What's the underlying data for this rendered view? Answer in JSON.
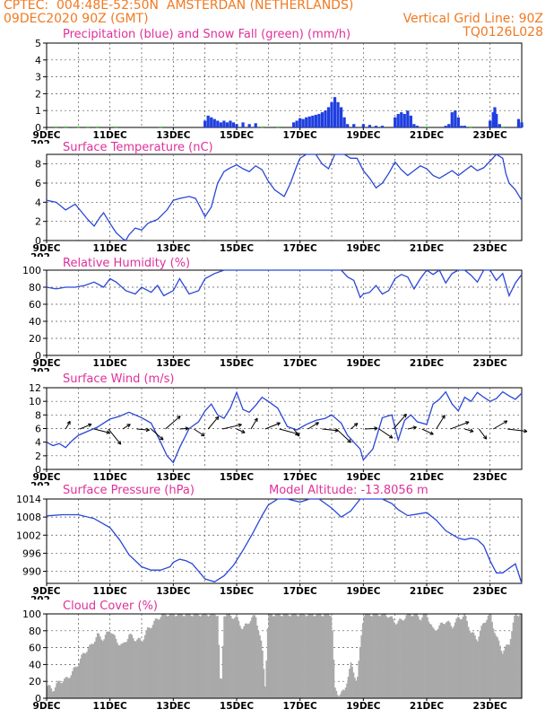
{
  "header": {
    "line1_left": "CPTEC:  004:48E-52:50N  AMSTERDAN (NETHERLANDS)",
    "line2_left": "09DEC2020 90Z (GMT)",
    "line2_right": "Vertical Grid Line: 90Z",
    "line3_right": "TQ0126L028"
  },
  "colors": {
    "header": "#f07a22",
    "title": "#e0309a",
    "line": "#2a47d6",
    "precip": "#1f3fe0",
    "snow": "#2bb52b",
    "cloud": "#a9a9a9",
    "wind_vector": "#000000"
  },
  "x_axis": {
    "tick_labels": [
      "9DEC",
      "11DEC",
      "13DEC",
      "15DEC",
      "17DEC",
      "19DEC",
      "21DEC",
      "23DEC"
    ],
    "tick_days": [
      9,
      11,
      13,
      15,
      17,
      19,
      21,
      23
    ],
    "range_days": [
      9,
      24
    ],
    "clipped_label_left": "202"
  },
  "chart_data": [
    {
      "type": "bar",
      "title": "Precipitation (blue) and Snow Fall (green) (mm/h)",
      "ylim": [
        0,
        5
      ],
      "yticks": [
        "0",
        "1",
        "2",
        "3",
        "4",
        "5"
      ],
      "grid": true,
      "series": [
        {
          "name": "Precipitation (blue)",
          "points": [
            [
              14.0,
              0.4
            ],
            [
              14.1,
              0.7
            ],
            [
              14.2,
              0.6
            ],
            [
              14.3,
              0.5
            ],
            [
              14.4,
              0.4
            ],
            [
              14.5,
              0.3
            ],
            [
              14.6,
              0.4
            ],
            [
              14.7,
              0.3
            ],
            [
              14.8,
              0.4
            ],
            [
              14.9,
              0.3
            ],
            [
              15.0,
              0.2
            ],
            [
              15.2,
              0.3
            ],
            [
              15.4,
              0.2
            ],
            [
              15.6,
              0.25
            ],
            [
              16.8,
              0.3
            ],
            [
              16.9,
              0.4
            ],
            [
              17.0,
              0.55
            ],
            [
              17.1,
              0.5
            ],
            [
              17.2,
              0.6
            ],
            [
              17.3,
              0.65
            ],
            [
              17.4,
              0.7
            ],
            [
              17.5,
              0.75
            ],
            [
              17.6,
              0.8
            ],
            [
              17.7,
              0.9
            ],
            [
              17.8,
              1.0
            ],
            [
              17.9,
              1.2
            ],
            [
              18.0,
              1.5
            ],
            [
              18.1,
              1.8
            ],
            [
              18.2,
              1.5
            ],
            [
              18.3,
              1.2
            ],
            [
              18.4,
              0.6
            ],
            [
              18.5,
              0.2
            ],
            [
              18.7,
              0.2
            ],
            [
              19.0,
              0.2
            ],
            [
              19.2,
              0.15
            ],
            [
              19.4,
              0.1
            ],
            [
              19.6,
              0.1
            ],
            [
              20.0,
              0.6
            ],
            [
              20.1,
              0.8
            ],
            [
              20.2,
              0.9
            ],
            [
              20.3,
              0.8
            ],
            [
              20.4,
              1.0
            ],
            [
              20.5,
              0.7
            ],
            [
              20.6,
              0.2
            ],
            [
              20.7,
              0.1
            ],
            [
              21.6,
              0.1
            ],
            [
              21.7,
              0.2
            ],
            [
              21.8,
              0.9
            ],
            [
              21.9,
              1.0
            ],
            [
              22.0,
              0.6
            ],
            [
              22.1,
              0.1
            ],
            [
              22.2,
              0.1
            ],
            [
              23.0,
              0.4
            ],
            [
              23.1,
              0.9
            ],
            [
              23.15,
              1.2
            ],
            [
              23.2,
              0.8
            ],
            [
              23.3,
              0.2
            ],
            [
              23.9,
              0.5
            ],
            [
              24.0,
              0.3
            ]
          ]
        },
        {
          "name": "Snow Fall (green)",
          "points": [
            [
              9.3,
              0.05
            ],
            [
              9.6,
              0.05
            ],
            [
              10.0,
              0.05
            ],
            [
              10.3,
              0.05
            ],
            [
              10.6,
              0.05
            ],
            [
              11.2,
              0.05
            ],
            [
              12.6,
              0.05
            ],
            [
              15.8,
              0.05
            ],
            [
              16.3,
              0.05
            ],
            [
              21.0,
              0.05
            ],
            [
              22.4,
              0.05
            ],
            [
              23.4,
              0.05
            ]
          ]
        }
      ]
    },
    {
      "type": "line",
      "title": "Surface Temperature (nC)",
      "ylim": [
        0,
        9
      ],
      "yticks": [
        "0",
        "2",
        "4",
        "6",
        "8"
      ],
      "grid": true,
      "x": [
        9.0,
        9.3,
        9.6,
        9.9,
        10.1,
        10.3,
        10.5,
        10.7,
        10.8,
        11.0,
        11.2,
        11.4,
        11.5,
        11.6,
        11.8,
        12.0,
        12.2,
        12.5,
        12.8,
        13.0,
        13.2,
        13.5,
        13.7,
        13.8,
        14.0,
        14.2,
        14.4,
        14.6,
        14.8,
        15.0,
        15.2,
        15.4,
        15.6,
        15.8,
        16.0,
        16.2,
        16.5,
        16.7,
        16.9,
        17.0,
        17.2,
        17.5,
        17.7,
        17.9,
        18.1,
        18.4,
        18.6,
        18.8,
        19.0,
        19.2,
        19.4,
        19.6,
        19.8,
        20.0,
        20.2,
        20.4,
        20.6,
        20.8,
        21.0,
        21.2,
        21.4,
        21.6,
        21.8,
        22.0,
        22.2,
        22.4,
        22.6,
        22.8,
        23.0,
        23.2,
        23.4,
        23.5,
        23.6,
        23.8,
        24.0
      ],
      "y": [
        4.2,
        4.0,
        3.2,
        3.8,
        3.0,
        2.2,
        1.5,
        2.5,
        2.9,
        1.8,
        0.8,
        0.2,
        0.0,
        0.6,
        1.3,
        1.1,
        1.8,
        2.2,
        3.2,
        4.2,
        4.4,
        4.6,
        4.4,
        3.8,
        2.5,
        3.5,
        6.0,
        7.2,
        7.6,
        7.9,
        7.5,
        7.2,
        7.8,
        7.4,
        6.2,
        5.3,
        4.6,
        6.0,
        7.8,
        8.6,
        9.0,
        9.0,
        8.0,
        7.5,
        9.0,
        9.0,
        8.6,
        8.6,
        7.3,
        6.5,
        5.5,
        6.0,
        7.0,
        8.2,
        7.4,
        6.8,
        7.3,
        7.8,
        7.5,
        6.8,
        6.5,
        6.9,
        7.3,
        6.8,
        7.3,
        7.8,
        7.3,
        7.6,
        8.3,
        9.0,
        8.6,
        7.0,
        6.0,
        5.3,
        4.2
      ]
    },
    {
      "type": "line",
      "title": "Relative Humidity (%)",
      "ylim": [
        0,
        100
      ],
      "yticks": [
        "0",
        "20",
        "40",
        "60",
        "80",
        "100"
      ],
      "grid": true,
      "x": [
        9.0,
        9.3,
        9.6,
        9.9,
        10.2,
        10.5,
        10.8,
        11.0,
        11.2,
        11.5,
        11.8,
        12.0,
        12.3,
        12.5,
        12.7,
        13.0,
        13.2,
        13.5,
        13.8,
        14.0,
        14.3,
        14.6,
        15.0,
        15.5,
        16.0,
        16.5,
        17.0,
        17.5,
        18.0,
        18.3,
        18.5,
        18.7,
        18.9,
        19.0,
        19.2,
        19.4,
        19.6,
        19.8,
        20.0,
        20.2,
        20.4,
        20.6,
        20.8,
        21.0,
        21.2,
        21.4,
        21.6,
        21.8,
        22.0,
        22.2,
        22.4,
        22.6,
        22.8,
        23.0,
        23.2,
        23.4,
        23.6,
        23.8,
        24.0
      ],
      "y": [
        80,
        78,
        80,
        80,
        82,
        86,
        80,
        90,
        86,
        76,
        72,
        80,
        74,
        82,
        70,
        76,
        90,
        72,
        76,
        90,
        96,
        100,
        100,
        100,
        100,
        100,
        100,
        100,
        100,
        100,
        92,
        88,
        68,
        72,
        74,
        82,
        72,
        76,
        90,
        95,
        92,
        78,
        90,
        100,
        95,
        100,
        85,
        96,
        100,
        100,
        94,
        86,
        100,
        100,
        88,
        96,
        70,
        85,
        95
      ]
    },
    {
      "type": "line",
      "title": "Surface Wind (m/s)",
      "ylim": [
        0,
        12
      ],
      "yticks": [
        "0",
        "2",
        "4",
        "6",
        "8",
        "10",
        "12"
      ],
      "grid": true,
      "x": [
        9.0,
        9.2,
        9.4,
        9.6,
        9.8,
        10.0,
        10.3,
        10.6,
        11.0,
        11.3,
        11.6,
        12.0,
        12.3,
        12.6,
        12.8,
        13.0,
        13.2,
        13.5,
        13.8,
        14.0,
        14.2,
        14.4,
        14.6,
        14.8,
        15.0,
        15.2,
        15.4,
        15.6,
        15.8,
        16.0,
        16.3,
        16.6,
        16.9,
        17.2,
        17.5,
        17.8,
        18.0,
        18.3,
        18.5,
        18.7,
        18.9,
        19.0,
        19.3,
        19.6,
        19.9,
        20.1,
        20.3,
        20.5,
        20.7,
        21.0,
        21.2,
        21.4,
        21.6,
        21.8,
        22.0,
        22.2,
        22.4,
        22.6,
        22.8,
        23.0,
        23.2,
        23.4,
        23.6,
        23.8,
        24.0
      ],
      "y": [
        4.0,
        3.5,
        3.8,
        3.2,
        4.2,
        5.0,
        5.6,
        6.2,
        7.4,
        7.8,
        8.4,
        7.6,
        6.8,
        4.0,
        2.0,
        1.0,
        3.2,
        6.0,
        7.0,
        8.6,
        9.6,
        8.0,
        7.5,
        9.0,
        11.3,
        8.8,
        8.4,
        9.4,
        10.6,
        10.0,
        9.0,
        6.3,
        5.8,
        6.6,
        7.2,
        7.5,
        8.0,
        6.8,
        5.0,
        4.0,
        3.0,
        1.4,
        3.0,
        7.6,
        8.0,
        4.3,
        7.2,
        8.0,
        7.0,
        6.6,
        9.6,
        10.3,
        11.4,
        9.6,
        8.6,
        10.6,
        10.0,
        11.3,
        10.6,
        10.0,
        10.4,
        11.4,
        10.8,
        10.3,
        11.2
      ]
    },
    {
      "type": "line",
      "title": "Surface Pressure (hPa)",
      "annotation": "Model Altitude: -13.8056 m",
      "ylim": [
        986,
        1014
      ],
      "yticks": [
        "990",
        "996",
        "1002",
        "1008",
        "1014"
      ],
      "grid": true,
      "x": [
        9.0,
        9.5,
        10.0,
        10.5,
        11.0,
        11.3,
        11.6,
        12.0,
        12.3,
        12.6,
        12.9,
        13.0,
        13.2,
        13.4,
        13.6,
        13.8,
        14.0,
        14.3,
        14.6,
        14.9,
        15.2,
        15.5,
        15.8,
        16.0,
        16.3,
        16.6,
        17.0,
        17.3,
        17.6,
        18.0,
        18.3,
        18.6,
        18.9,
        19.0,
        19.3,
        19.6,
        19.9,
        20.1,
        20.4,
        20.7,
        21.0,
        21.3,
        21.6,
        22.0,
        22.2,
        22.4,
        22.6,
        22.8,
        23.0,
        23.2,
        23.4,
        23.6,
        23.8,
        24.0
      ],
      "y": [
        1008.4,
        1008.8,
        1008.8,
        1007.5,
        1004.5,
        1000.5,
        995.5,
        991.5,
        990.4,
        990.4,
        991.5,
        993.0,
        994.0,
        993.5,
        992.5,
        990.0,
        987.5,
        986.5,
        988.5,
        992.0,
        997.0,
        1002.5,
        1008.5,
        1012.0,
        1014.0,
        1014.0,
        1013.0,
        1014.0,
        1014.0,
        1011.0,
        1008.0,
        1010.0,
        1014.0,
        1014.0,
        1014.0,
        1014.0,
        1012.5,
        1010.5,
        1008.5,
        1009.0,
        1009.5,
        1007.0,
        1003.5,
        1001.0,
        1000.5,
        1001.0,
        1000.5,
        998.5,
        993.5,
        989.5,
        989.5,
        991.0,
        992.5,
        986.0
      ]
    },
    {
      "type": "area",
      "title": "Cloud Cover (%)",
      "ylim": [
        0,
        100
      ],
      "yticks": [
        "0",
        "20",
        "40",
        "60",
        "80",
        "100"
      ],
      "grid": true,
      "x": [
        9.0,
        9.2,
        9.4,
        9.6,
        9.8,
        10.0,
        10.2,
        10.4,
        10.6,
        10.8,
        11.0,
        11.2,
        11.4,
        11.6,
        11.8,
        12.0,
        12.2,
        12.4,
        12.6,
        12.8,
        13.0,
        13.2,
        13.4,
        13.6,
        13.8,
        14.0,
        14.2,
        14.4,
        14.5,
        14.6,
        14.8,
        15.0,
        15.2,
        15.4,
        15.6,
        15.8,
        15.9,
        16.0,
        16.2,
        16.5,
        17.0,
        17.5,
        18.0,
        18.1,
        18.2,
        18.4,
        18.6,
        18.8,
        19.0,
        19.2,
        19.4,
        19.6,
        19.8,
        20.0,
        20.2,
        20.4,
        20.6,
        20.8,
        21.0,
        21.2,
        21.4,
        21.6,
        21.8,
        22.0,
        22.2,
        22.4,
        22.6,
        22.8,
        23.0,
        23.2,
        23.4,
        23.6,
        23.8,
        24.0
      ],
      "y": [
        15,
        10,
        20,
        22,
        30,
        42,
        55,
        62,
        75,
        70,
        82,
        68,
        62,
        75,
        70,
        68,
        82,
        90,
        98,
        100,
        100,
        100,
        100,
        100,
        100,
        100,
        100,
        100,
        0,
        100,
        98,
        95,
        82,
        92,
        98,
        60,
        15,
        100,
        100,
        100,
        100,
        100,
        100,
        10,
        5,
        8,
        40,
        20,
        100,
        100,
        100,
        100,
        98,
        90,
        92,
        100,
        100,
        95,
        100,
        80,
        85,
        92,
        85,
        95,
        98,
        78,
        70,
        90,
        100,
        72,
        55,
        65,
        100,
        100
      ]
    }
  ]
}
